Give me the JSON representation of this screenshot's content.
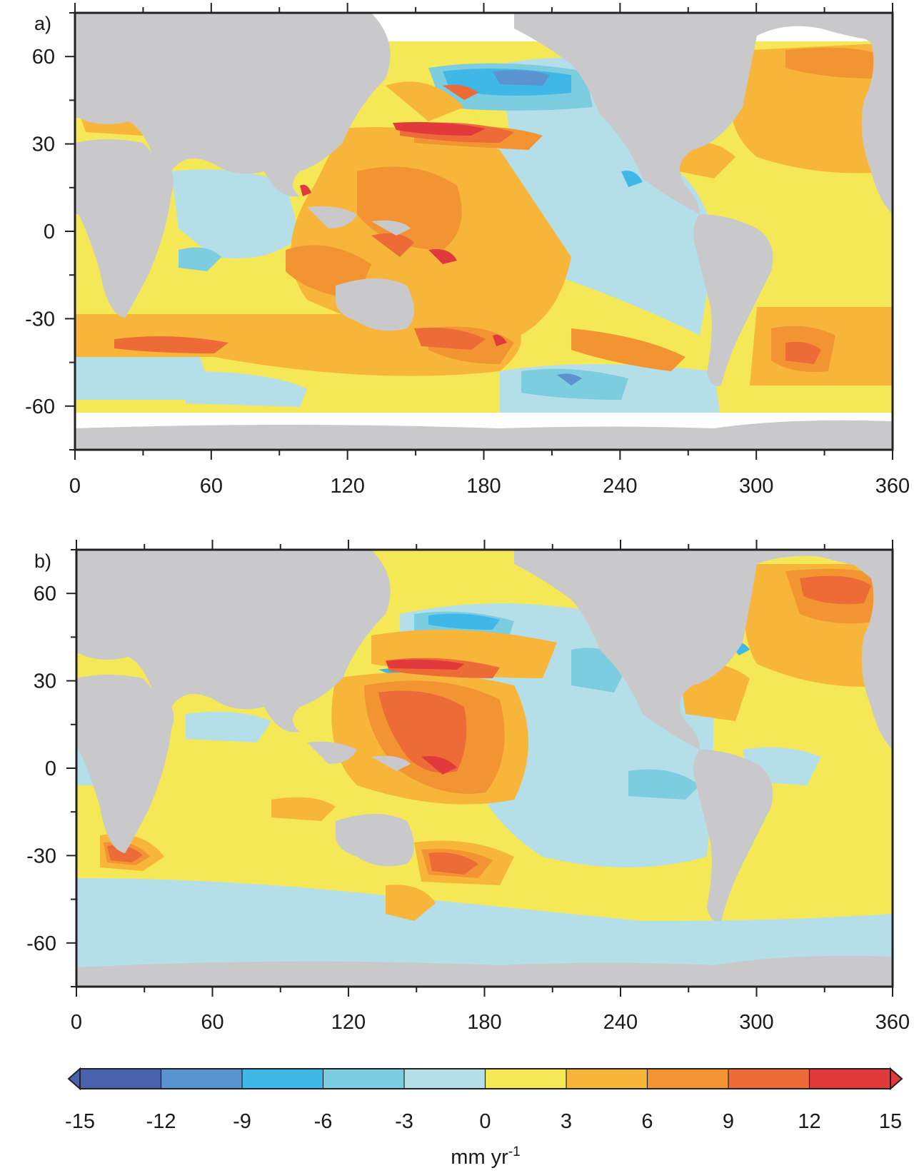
{
  "panels": [
    {
      "label": "a)",
      "x_ticks": [
        0,
        60,
        120,
        180,
        240,
        300,
        360
      ],
      "y_ticks": [
        60,
        30,
        0,
        -30,
        -60
      ],
      "lon_range": [
        0,
        360
      ],
      "lat_range": [
        -75,
        75
      ],
      "map_note": "Map of regional sea level trend: strong positive trends (red/orange) in western tropical Pacific, Kuroshio region, Southern Ocean band and Gulf Stream; negative trends (blue) in northeast Pacific gyre, North Atlantic subpolar region and parts of Southern Ocean; data masked poleward of about 66 degrees."
    },
    {
      "label": "b)",
      "x_ticks": [
        0,
        60,
        120,
        180,
        240,
        300,
        360
      ],
      "y_ticks": [
        60,
        30,
        0,
        -30,
        -60
      ],
      "lon_range": [
        0,
        360
      ],
      "lat_range": [
        -75,
        75
      ],
      "map_note": "Smoother field: positive trends in western tropical Pacific, Kuroshio extension, Agulhas region, Tasman Sea and North Atlantic; negative trends in central/eastern Pacific and Southern Ocean; field covers full ocean domain."
    }
  ],
  "colorbar": {
    "ticks": [
      "-15",
      "-12",
      "-9",
      "-6",
      "-3",
      "0",
      "3",
      "6",
      "9",
      "12",
      "15"
    ],
    "unit_base": "mm yr",
    "unit_exp": "-1",
    "colors": [
      "#4a62ad",
      "#5b93d1",
      "#3fb8e8",
      "#7ccde0",
      "#b4dfe9",
      "#f5e856",
      "#f7b63a",
      "#f39433",
      "#ec6b37",
      "#e23a3c"
    ],
    "under_color": "#4a62ad",
    "over_color": "#e23a3c"
  },
  "colors": {
    "land": "#c9c9cb",
    "ice": "#ffffff",
    "frame": "#222222"
  }
}
